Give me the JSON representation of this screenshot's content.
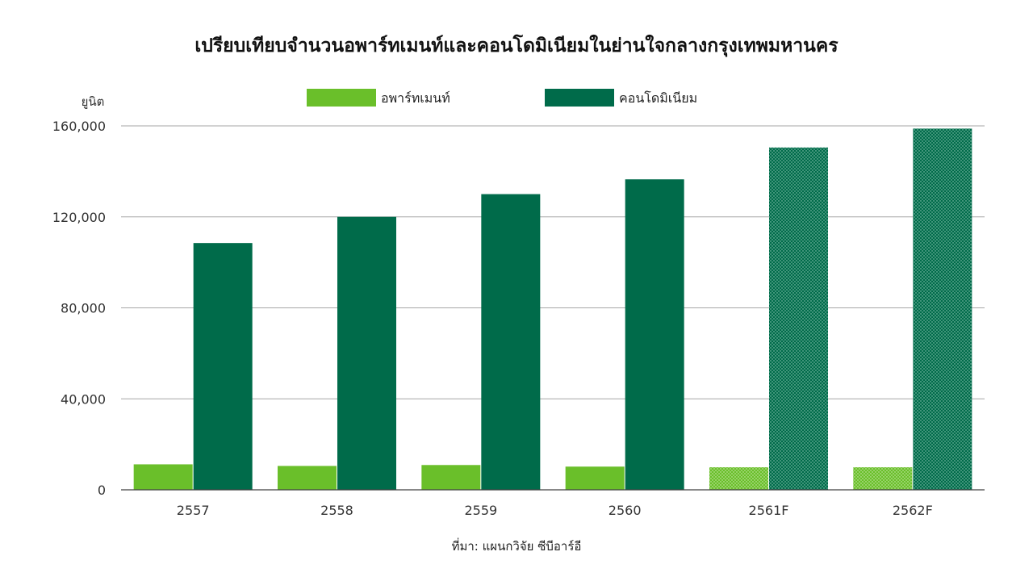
{
  "chart_data": {
    "type": "bar",
    "title": "เปรียบเทียบจำนวนอพาร์ทเมนท์และคอนโดมิเนียมในย่านใจกลางกรุงเทพมหานคร",
    "ylabel": "ยูนิต",
    "xlabel": "",
    "source": "ที่มา: แผนกวิจัย ซีบีอาร์อี",
    "categories": [
      "2557",
      "2558",
      "2559",
      "2560",
      "2561F",
      "2562F"
    ],
    "forecast_categories": [
      "2561F",
      "2562F"
    ],
    "ylim": [
      0,
      160000
    ],
    "yticks": [
      0,
      40000,
      80000,
      120000,
      160000
    ],
    "ytick_labels": [
      "0",
      "40,000",
      "80,000",
      "120,000",
      "160,000"
    ],
    "grid": true,
    "legend_position": "top-center",
    "series": [
      {
        "name": "อพาร์ทเมนท์",
        "color": "#6abf2a",
        "values": [
          11200,
          10500,
          10900,
          10200,
          9900,
          9900
        ]
      },
      {
        "name": "คอนโดมิเนียม",
        "color": "#006b4a",
        "values": [
          108500,
          120000,
          130000,
          136500,
          150500,
          158800
        ]
      }
    ]
  }
}
